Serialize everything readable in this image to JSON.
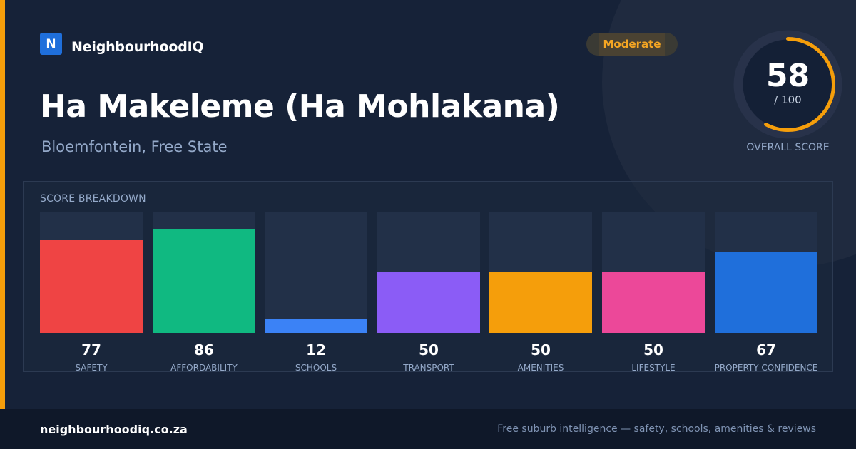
{
  "brand": {
    "logo_letter": "N",
    "name": "NeighbourhoodIQ"
  },
  "badge": {
    "label": "Moderate",
    "color": "#f5a623"
  },
  "suburb": {
    "name": "Ha Makeleme (Ha Mohlakana)",
    "location": "Bloemfontein, Free State"
  },
  "overall": {
    "score": "58",
    "max_label": "/ 100",
    "label": "OVERALL SCORE",
    "fraction": 0.58,
    "ring_color": "#f59e0b"
  },
  "breakdown": {
    "title": "SCORE BREAKDOWN",
    "items": [
      {
        "value": "77",
        "label": "SAFETY",
        "score": 77,
        "color": "#ef4444"
      },
      {
        "value": "86",
        "label": "AFFORDABILITY",
        "score": 86,
        "color": "#10b981"
      },
      {
        "value": "12",
        "label": "SCHOOLS",
        "score": 12,
        "color": "#3b82f6"
      },
      {
        "value": "50",
        "label": "TRANSPORT",
        "score": 50,
        "color": "#8b5cf6"
      },
      {
        "value": "50",
        "label": "AMENITIES",
        "score": 50,
        "color": "#f59e0b"
      },
      {
        "value": "50",
        "label": "LIFESTYLE",
        "score": 50,
        "color": "#ec4899"
      },
      {
        "value": "67",
        "label": "PROPERTY CONFIDENCE",
        "score": 67,
        "color": "#1f6fdb"
      }
    ]
  },
  "footer": {
    "site": "neighbourhoodiq.co.za",
    "tagline": "Free suburb intelligence — safety, schools, amenities & reviews"
  }
}
